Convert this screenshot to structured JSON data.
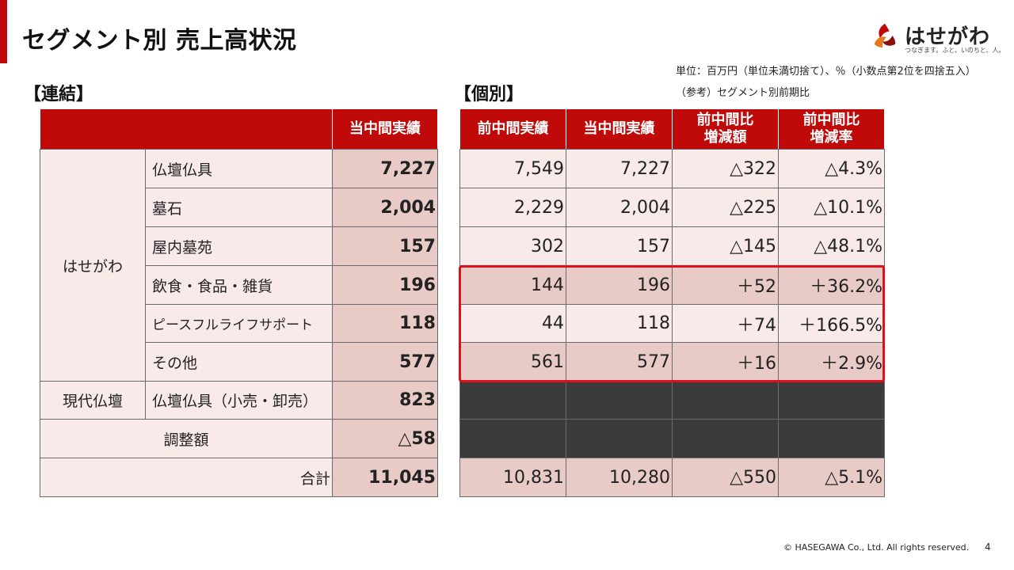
{
  "slide": {
    "title": "セグメント別 売上高状況",
    "unit_note": "単位：百万円（単位未満切捨て）、％（小数点第2位を四捨五入）",
    "ref_note": "（参考）セグメント別前期比",
    "consolidated_label": "【連結】",
    "individual_label": "【個別】",
    "footer": "© HASEGAWA Co., Ltd. All rights reserved.",
    "page_number": "4"
  },
  "logo": {
    "text": "はせがわ",
    "tagline": "つなぎます。ふと、いのちと、人。",
    "colors": {
      "red": "#c00a0a",
      "orange": "#e8771e",
      "dark_red": "#8a0f0f"
    }
  },
  "colors": {
    "accent": "#c00a0a",
    "highlight": "#e0101a"
  },
  "consolidated": {
    "header": "当中間実績",
    "group_hasegawa": "はせがわ",
    "group_gendai": "現代仏壇",
    "adjustment_label": "調整額",
    "total_label": "合計",
    "rows": [
      {
        "label": "仏壇仏具",
        "value": "7,227"
      },
      {
        "label": "墓石",
        "value": "2,004"
      },
      {
        "label": "屋内墓苑",
        "value": "157"
      },
      {
        "label": "飲食・食品・雑貨",
        "value": "196"
      },
      {
        "label": "ピースフルライフサポート",
        "value": "118"
      },
      {
        "label": "その他",
        "value": "577"
      },
      {
        "label": "仏壇仏具（小売・卸売）",
        "value": "823"
      }
    ],
    "adjustment_value": "△58",
    "total_value": "11,045"
  },
  "individual": {
    "headers": [
      "前中間実績",
      "当中間実績",
      "前中間比\n増減額",
      "前中間比\n増減率"
    ],
    "header_lines": [
      [
        "前中間実績"
      ],
      [
        "当中間実績"
      ],
      [
        "前中間比",
        "増減額"
      ],
      [
        "前中間比",
        "増減率"
      ]
    ],
    "rows": [
      [
        "7,549",
        "7,227",
        "△322",
        "△4.3%"
      ],
      [
        "2,229",
        "2,004",
        "△225",
        "△10.1%"
      ],
      [
        "302",
        "157",
        "△145",
        "△48.1%"
      ],
      [
        "144",
        "196",
        "＋52",
        "＋36.2%"
      ],
      [
        "44",
        "118",
        "＋74",
        "＋166.5%"
      ],
      [
        "561",
        "577",
        "＋16",
        "＋2.9%"
      ]
    ],
    "total": [
      "10,831",
      "10,280",
      "△550",
      "△5.1%"
    ]
  }
}
